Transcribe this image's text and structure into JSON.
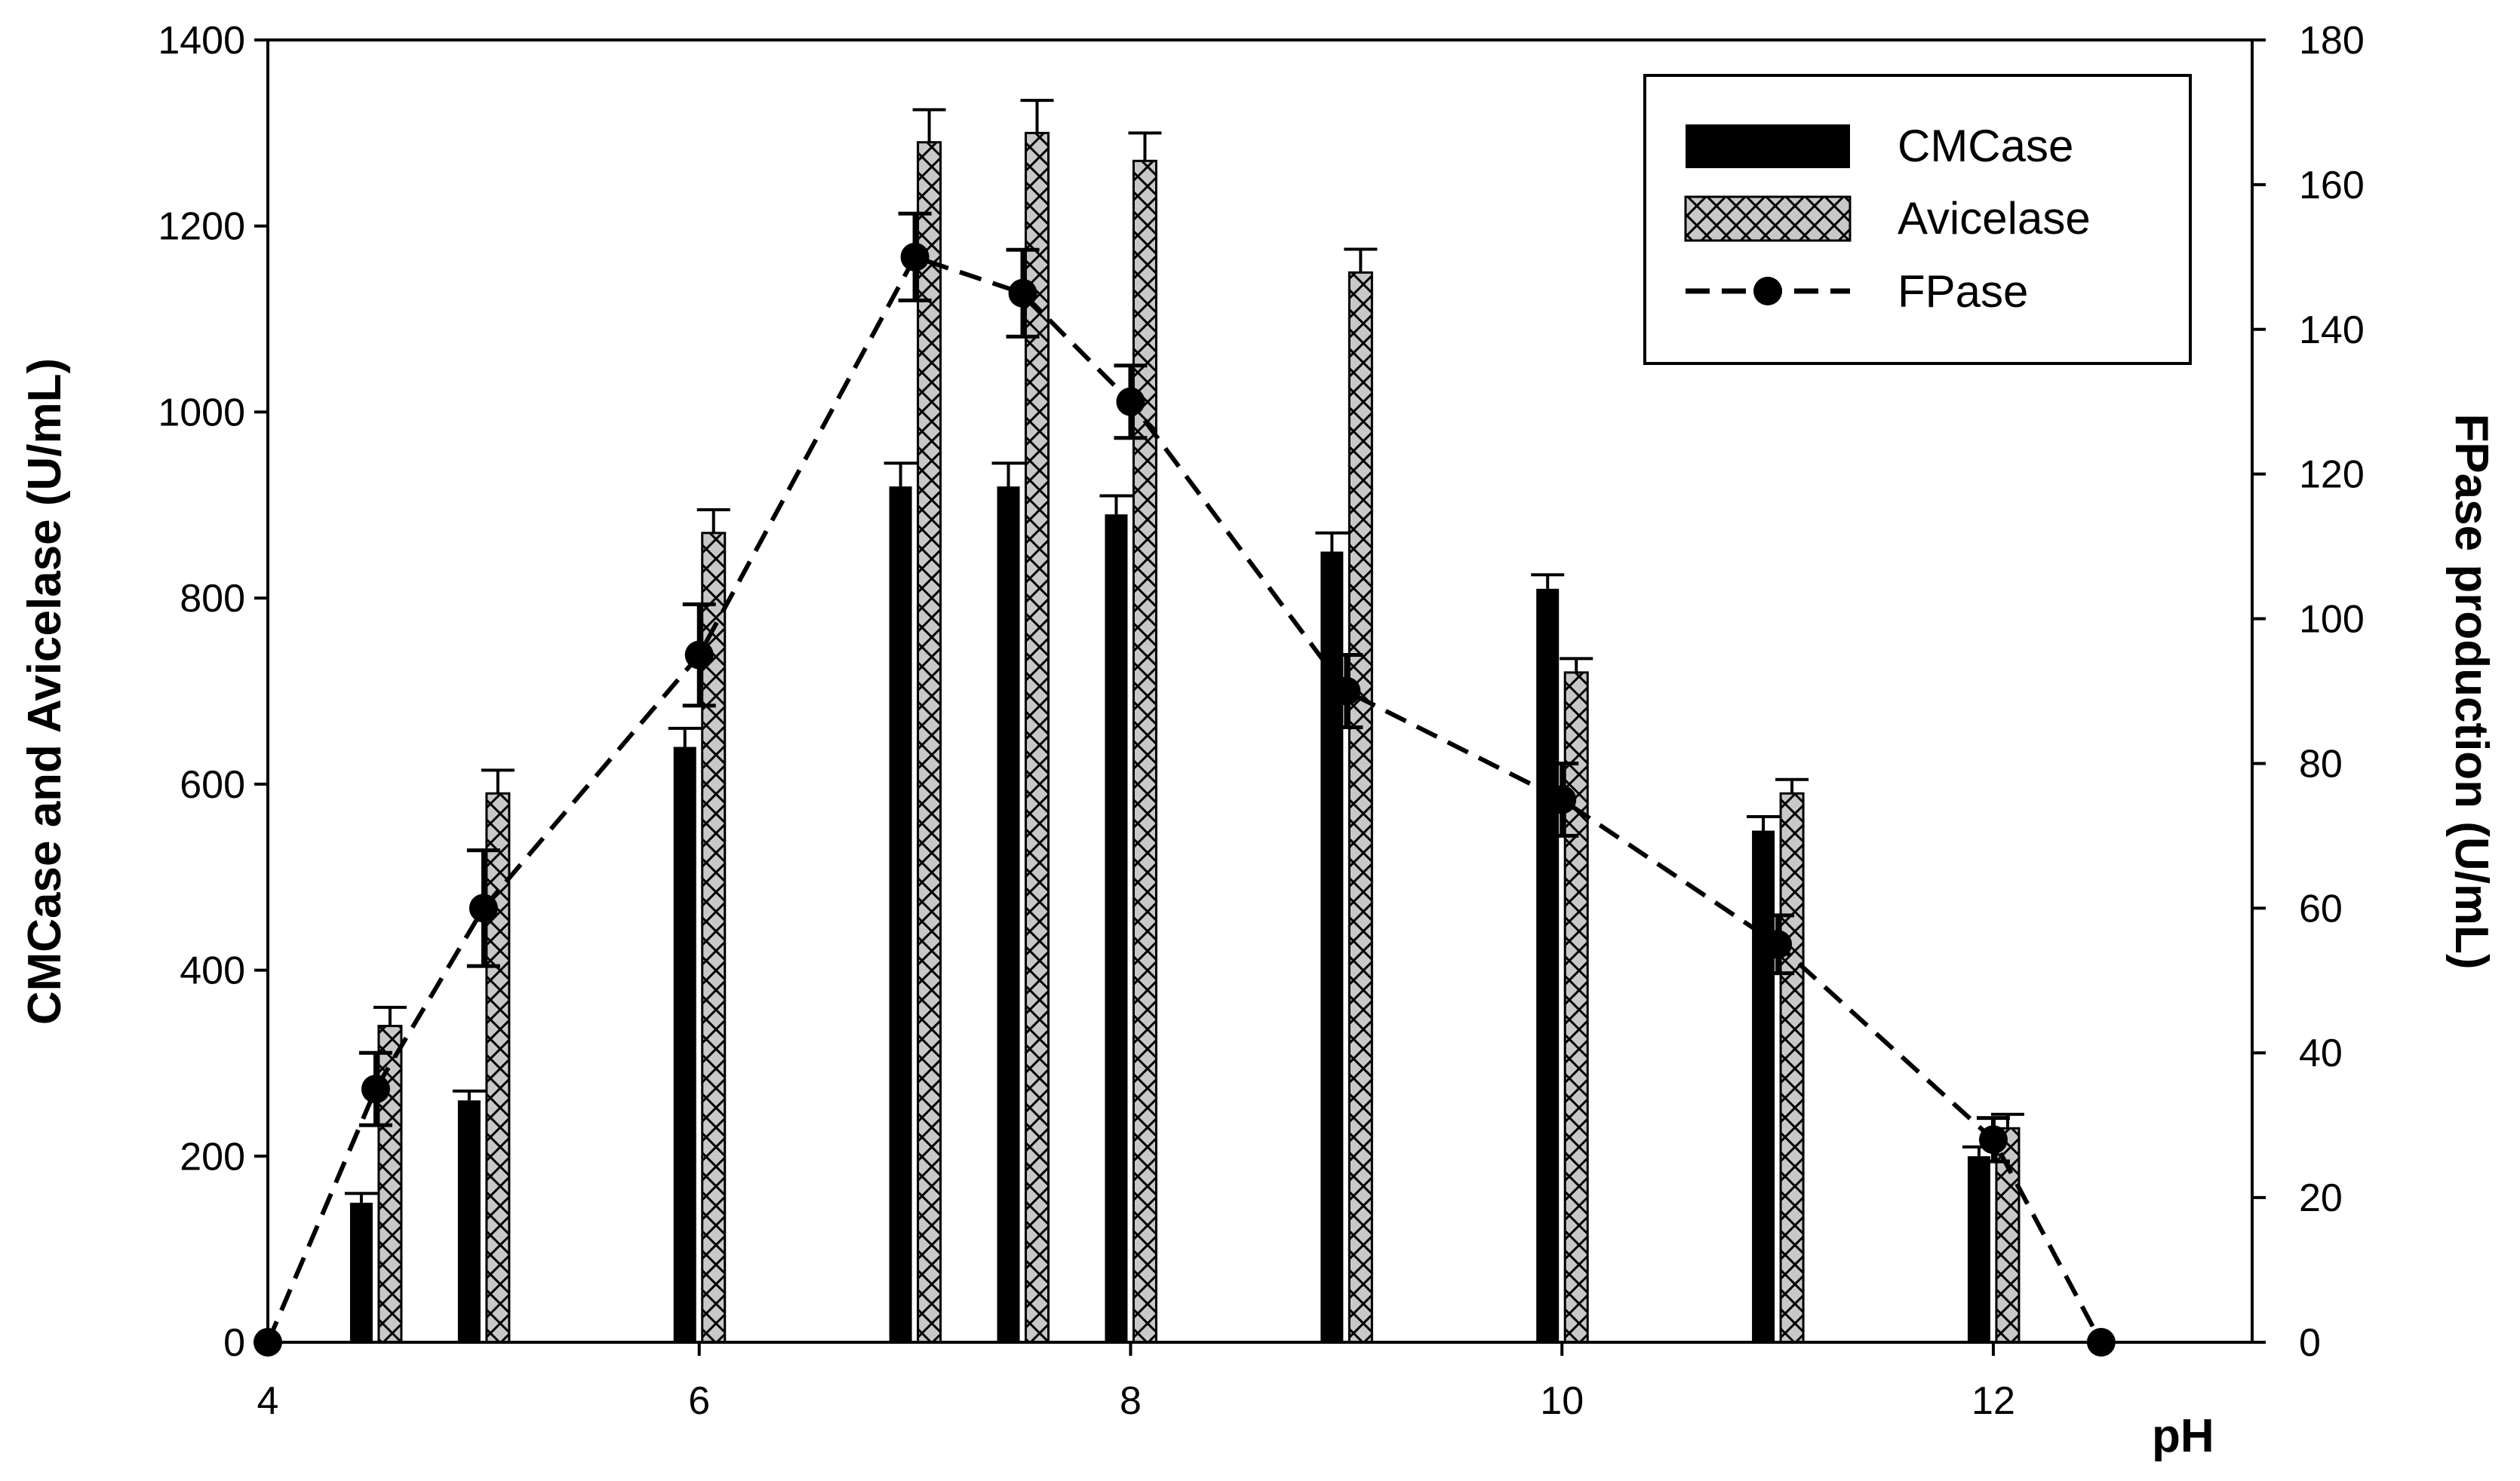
{
  "chart_data": {
    "type": "bar",
    "xlabel": "pH",
    "ylabel": "CMCase and Avicelase (U/mL)",
    "y2label": "FPase production (U/mL)",
    "xlim": [
      4,
      13.2
    ],
    "ylim": [
      0,
      1400
    ],
    "y2lim": [
      0,
      180
    ],
    "x_ticks": [
      "4",
      "6",
      "8",
      "10",
      "12"
    ],
    "y_ticks": [
      "0",
      "200",
      "400",
      "600",
      "800",
      "1000",
      "1200",
      "1400"
    ],
    "y2_ticks": [
      "0",
      "20",
      "40",
      "60",
      "80",
      "100",
      "120",
      "140",
      "160",
      "180"
    ],
    "legend_position": "top-right",
    "grid": false,
    "colors": {
      "cmcase": "#000000",
      "avicelase": "#c8c8c8",
      "fpase": "#000000"
    },
    "series": [
      {
        "name": "CMCase",
        "kind": "bar",
        "axis": "left",
        "x": [
          4.5,
          5,
          6,
          7,
          7.5,
          8,
          9,
          10,
          11,
          12
        ],
        "values": [
          150,
          260,
          640,
          920,
          920,
          890,
          850,
          810,
          550,
          200
        ],
        "errors": [
          10,
          10,
          20,
          25,
          25,
          20,
          20,
          15,
          15,
          10
        ]
      },
      {
        "name": "Avicelase",
        "kind": "bar",
        "axis": "left",
        "x": [
          4.5,
          5,
          6,
          7,
          7.5,
          8,
          9,
          10,
          11,
          12
        ],
        "values": [
          340,
          590,
          870,
          1290,
          1300,
          1270,
          1150,
          720,
          590,
          230
        ],
        "errors": [
          20,
          25,
          25,
          35,
          35,
          30,
          25,
          15,
          15,
          15
        ]
      },
      {
        "name": "FPase",
        "kind": "line",
        "axis": "right",
        "x": [
          4,
          4.5,
          5,
          6,
          7,
          7.5,
          8,
          9,
          10,
          11,
          12,
          12.5
        ],
        "values": [
          0,
          35,
          60,
          95,
          150,
          145,
          130,
          90,
          75,
          55,
          28,
          0
        ],
        "errors": [
          0,
          5,
          8,
          7,
          6,
          6,
          5,
          5,
          5,
          4,
          3,
          0
        ]
      }
    ]
  }
}
